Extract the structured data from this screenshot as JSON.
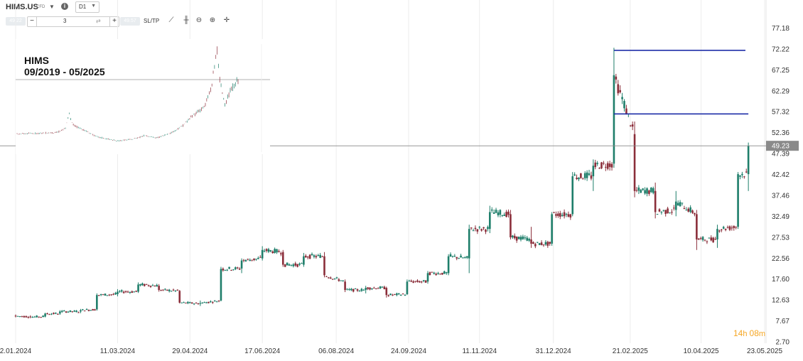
{
  "toolbar": {
    "ticker": "HIMS.US",
    "instrument_type": "CFD",
    "timeframe": "D1",
    "bid_box": "49.22",
    "ask_box": "49.57",
    "volume": "3",
    "sltp_label": "SL/TP",
    "icons": [
      "line-chart-icon",
      "candlestick-icon",
      "zoom-out-icon",
      "zoom-in-icon",
      "crosshair-icon"
    ]
  },
  "countdown": {
    "hours": "14",
    "h_unit": "h",
    "minutes": "08",
    "m_unit": "m"
  },
  "colors": {
    "up": "#1e7e6a",
    "down": "#8b2e3a",
    "level_line": "#1f2fa8",
    "price_line": "#888888",
    "price_label_bg": "#8a8a8a",
    "countdown": "#f5a623"
  },
  "chart_data": {
    "type": "candlestick",
    "title": "",
    "xlabel": "",
    "ylabel": "",
    "x_ticks": [
      "2.01.2024",
      "11.03.2024",
      "29.04.2024",
      "17.06.2024",
      "06.08.2024",
      "24.09.2024",
      "11.11.2024",
      "31.12.2024",
      "21.02.2025",
      "10.04.2025",
      "23.05.2025"
    ],
    "y_ticks": [
      2.7,
      7.67,
      12.63,
      17.6,
      22.56,
      27.53,
      32.49,
      37.46,
      42.42,
      47.39,
      52.36,
      57.32,
      62.29,
      67.25,
      72.22,
      77.18
    ],
    "ylim": [
      2.7,
      79.5
    ],
    "x_range": [
      "2.01.2024",
      "23.05.2025"
    ],
    "current_price": 49.23,
    "horizontal_levels": [
      {
        "value": 71.9,
        "from": "10.02.2025",
        "to": "10.05.2025"
      },
      {
        "value": 56.8,
        "from": "10.02.2025",
        "to": "12.05.2025"
      }
    ],
    "candles_approx": [
      {
        "d": "2024-01-02",
        "o": 8.9,
        "h": 9.2,
        "l": 8.5,
        "c": 8.8
      },
      {
        "d": "2024-01-12",
        "o": 8.7,
        "h": 9.0,
        "l": 8.3,
        "c": 8.6
      },
      {
        "d": "2024-01-22",
        "o": 8.7,
        "h": 9.6,
        "l": 8.5,
        "c": 9.4
      },
      {
        "d": "2024-02-01",
        "o": 9.4,
        "h": 10.2,
        "l": 9.1,
        "c": 9.9
      },
      {
        "d": "2024-02-15",
        "o": 9.9,
        "h": 10.5,
        "l": 9.5,
        "c": 10.2
      },
      {
        "d": "2024-02-26",
        "o": 10.4,
        "h": 14.2,
        "l": 10.1,
        "c": 13.8
      },
      {
        "d": "2024-03-11",
        "o": 14.0,
        "h": 15.2,
        "l": 13.5,
        "c": 14.6
      },
      {
        "d": "2024-03-25",
        "o": 14.6,
        "h": 16.8,
        "l": 14.3,
        "c": 16.3
      },
      {
        "d": "2024-04-08",
        "o": 16.0,
        "h": 16.4,
        "l": 14.6,
        "c": 15.0
      },
      {
        "d": "2024-04-22",
        "o": 14.8,
        "h": 15.0,
        "l": 11.8,
        "c": 12.0
      },
      {
        "d": "2024-05-06",
        "o": 11.8,
        "h": 12.5,
        "l": 11.2,
        "c": 11.9
      },
      {
        "d": "2024-05-20",
        "o": 12.5,
        "h": 20.5,
        "l": 12.3,
        "c": 20.0
      },
      {
        "d": "2024-06-03",
        "o": 20.1,
        "h": 22.5,
        "l": 19.0,
        "c": 22.0
      },
      {
        "d": "2024-06-17",
        "o": 22.5,
        "h": 25.4,
        "l": 22.0,
        "c": 24.5
      },
      {
        "d": "2024-07-01",
        "o": 24.0,
        "h": 24.5,
        "l": 20.5,
        "c": 21.0
      },
      {
        "d": "2024-07-15",
        "o": 21.0,
        "h": 23.8,
        "l": 20.5,
        "c": 23.0
      },
      {
        "d": "2024-07-29",
        "o": 23.0,
        "h": 24.0,
        "l": 18.0,
        "c": 18.5
      },
      {
        "d": "2024-08-12",
        "o": 17.0,
        "h": 17.5,
        "l": 14.5,
        "c": 15.0
      },
      {
        "d": "2024-08-26",
        "o": 15.0,
        "h": 16.0,
        "l": 14.2,
        "c": 15.5
      },
      {
        "d": "2024-09-09",
        "o": 15.5,
        "h": 15.8,
        "l": 13.2,
        "c": 13.8
      },
      {
        "d": "2024-09-23",
        "o": 14.0,
        "h": 17.5,
        "l": 13.8,
        "c": 17.0
      },
      {
        "d": "2024-10-07",
        "o": 17.0,
        "h": 19.5,
        "l": 16.5,
        "c": 19.0
      },
      {
        "d": "2024-10-21",
        "o": 19.0,
        "h": 23.5,
        "l": 18.5,
        "c": 23.0
      },
      {
        "d": "2024-11-04",
        "o": 22.5,
        "h": 30.5,
        "l": 19.0,
        "c": 29.5
      },
      {
        "d": "2024-11-18",
        "o": 29.5,
        "h": 35.0,
        "l": 28.5,
        "c": 33.5
      },
      {
        "d": "2024-12-02",
        "o": 33.0,
        "h": 34.0,
        "l": 27.0,
        "c": 27.5
      },
      {
        "d": "2024-12-16",
        "o": 27.0,
        "h": 30.0,
        "l": 25.0,
        "c": 26.0
      },
      {
        "d": "2024-12-30",
        "o": 26.0,
        "h": 33.5,
        "l": 25.5,
        "c": 33.0
      },
      {
        "d": "2025-01-13",
        "o": 33.0,
        "h": 43.0,
        "l": 32.5,
        "c": 42.0
      },
      {
        "d": "2025-01-27",
        "o": 42.0,
        "h": 46.0,
        "l": 38.5,
        "c": 44.5
      },
      {
        "d": "2025-02-10",
        "o": 45.0,
        "h": 72.5,
        "l": 44.0,
        "c": 66.0
      },
      {
        "d": "2025-02-24",
        "o": 52.0,
        "h": 55.0,
        "l": 37.0,
        "c": 38.5
      },
      {
        "d": "2025-03-10",
        "o": 38.5,
        "h": 40.5,
        "l": 32.0,
        "c": 33.5
      },
      {
        "d": "2025-03-24",
        "o": 34.0,
        "h": 38.5,
        "l": 32.5,
        "c": 36.0
      },
      {
        "d": "2025-04-07",
        "o": 33.0,
        "h": 34.0,
        "l": 24.5,
        "c": 27.0
      },
      {
        "d": "2025-04-21",
        "o": 27.0,
        "h": 30.5,
        "l": 25.0,
        "c": 29.5
      },
      {
        "d": "2025-05-05",
        "o": 30.0,
        "h": 43.0,
        "l": 29.5,
        "c": 42.5
      },
      {
        "d": "2025-05-12",
        "o": 42.5,
        "h": 50.0,
        "l": 38.5,
        "c": 49.2
      }
    ],
    "inset": {
      "title": "HIMS",
      "subtitle": "09/2019 - 05/2025",
      "type": "candlestick"
    }
  }
}
